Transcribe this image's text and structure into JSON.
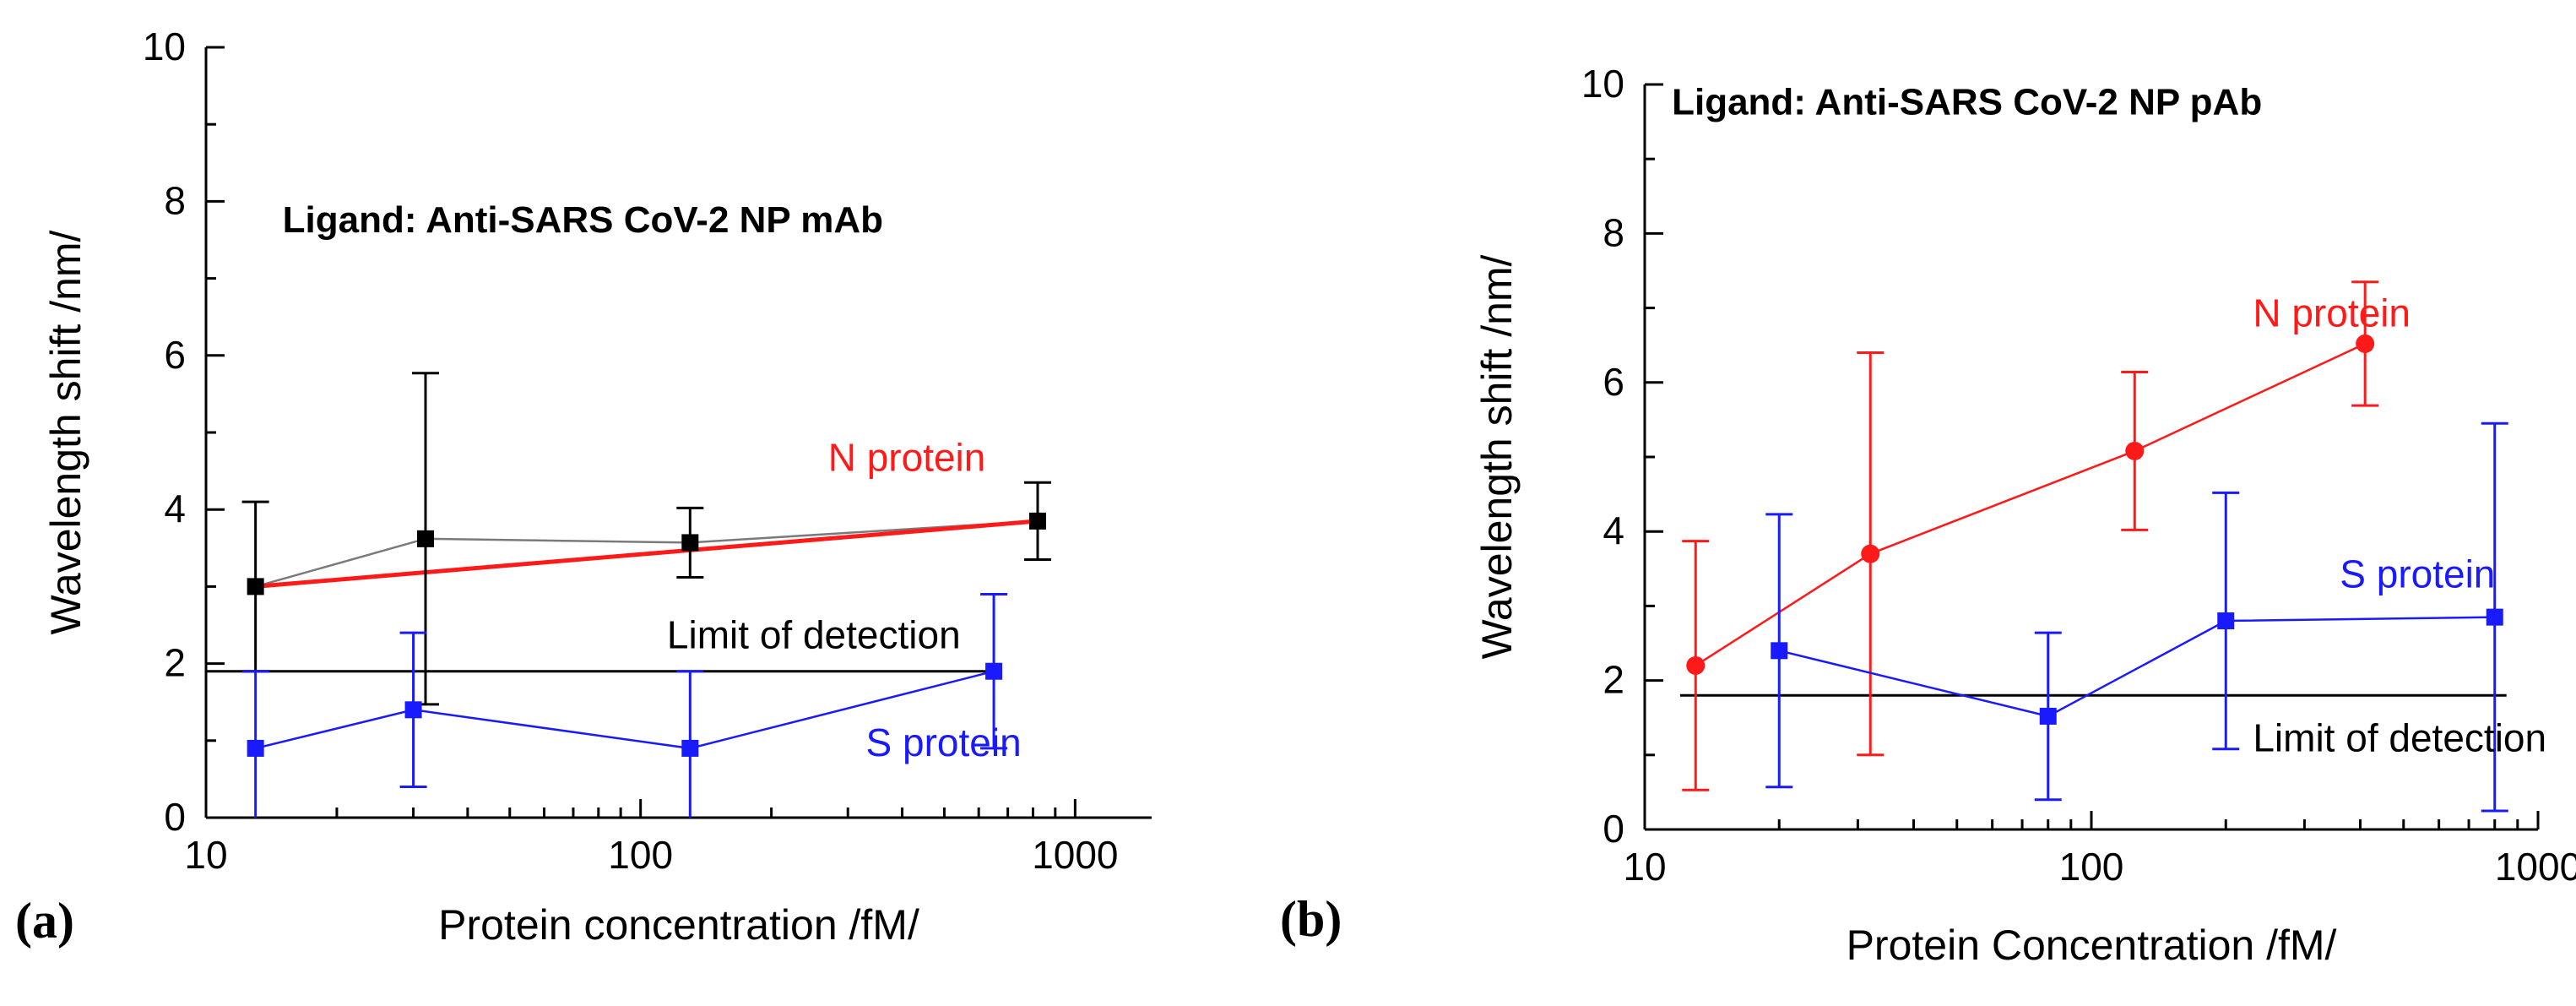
{
  "colors": {
    "n_protein": "#ff1a1a",
    "s_protein": "#1a1aff",
    "black": "#000000",
    "gray_line": "#7a7a7a"
  },
  "chart_data": [
    {
      "panel_label": "(a)",
      "type": "line",
      "xscale": "log",
      "xlim": [
        10,
        1500
      ],
      "ylim": [
        0,
        10
      ],
      "xlabel": "Protein concentration /fM/",
      "ylabel": "Wavelength shift  /nm/",
      "xticks": [
        10,
        100,
        1000
      ],
      "xtick_labels": [
        "10",
        "100",
        "1000"
      ],
      "yticks": [
        0,
        2,
        4,
        6,
        8,
        10
      ],
      "ytick_labels": [
        "0",
        "2",
        "4",
        "6",
        "8",
        "10"
      ],
      "title": "Ligand: Anti-SARS CoV-2 NP mAb",
      "series": [
        {
          "name": "N protein",
          "color": "#000000",
          "line_color": "#7a7a7a",
          "marker": "square",
          "x": [
            13,
            32,
            130,
            820
          ],
          "y": [
            3.0,
            3.62,
            3.57,
            3.85
          ],
          "yerr": [
            1.1,
            2.15,
            0.45,
            0.5
          ],
          "fit": {
            "color": "#ff1a1a",
            "x": [
              13,
              820
            ],
            "y": [
              3.0,
              3.85
            ]
          }
        },
        {
          "name": "S protein",
          "color": "#1a1aff",
          "line_color": "#1a1aff",
          "marker": "square",
          "x": [
            13,
            30,
            130,
            650
          ],
          "y": [
            0.9,
            1.4,
            0.9,
            1.9
          ],
          "yerr": [
            1.0,
            1.0,
            1.0,
            1.0
          ]
        }
      ],
      "lod": {
        "label": "Limit of detection",
        "y": 1.9,
        "x": [
          10,
          650
        ]
      },
      "annotations": [
        {
          "text": "N protein",
          "x": 270,
          "y": 4.5,
          "color": "#ff1a1a"
        },
        {
          "text": "S protein",
          "x": 330,
          "y": 0.8,
          "color": "#1a1aff"
        },
        {
          "text": "Limit of detection",
          "x": 115,
          "y": 2.2,
          "color": "#000000"
        },
        {
          "text": "Ligand: Anti-SARS CoV-2 NP mAb",
          "x": 15,
          "y": 7.6,
          "color": "#000000",
          "bold": true
        }
      ]
    },
    {
      "panel_label": "(b)",
      "type": "line",
      "xscale": "log",
      "xlim": [
        10,
        1000
      ],
      "ylim": [
        0,
        10
      ],
      "xlabel": "Protein Concentration /fM/",
      "ylabel": "Wavelength shift  /nm/",
      "xticks": [
        10,
        100,
        1000
      ],
      "xtick_labels": [
        "10",
        "100",
        "1000"
      ],
      "yticks": [
        0,
        2,
        4,
        6,
        8,
        10
      ],
      "ytick_labels": [
        "0",
        "2",
        "4",
        "6",
        "8",
        "10"
      ],
      "title": "Ligand: Anti-SARS CoV-2 NP pAb",
      "series": [
        {
          "name": "N protein",
          "color": "#ff1a1a",
          "line_color": "#ff1a1a",
          "marker": "circle",
          "x": [
            13,
            32,
            125,
            410
          ],
          "y": [
            2.2,
            3.7,
            5.08,
            6.52
          ],
          "yerr": [
            1.67,
            2.7,
            1.06,
            0.83
          ]
        },
        {
          "name": "S protein",
          "color": "#1a1aff",
          "line_color": "#1a1aff",
          "marker": "square",
          "x": [
            20,
            80,
            200,
            800
          ],
          "y": [
            2.4,
            1.52,
            2.8,
            2.85
          ],
          "yerr": [
            1.83,
            1.12,
            1.72,
            2.6
          ]
        }
      ],
      "lod": {
        "label": "Limit of detection",
        "y": 1.8,
        "x": [
          12,
          850
        ]
      },
      "annotations": [
        {
          "text": "N protein",
          "x": 230,
          "y": 6.75,
          "color": "#ff1a1a"
        },
        {
          "text": "S protein",
          "x": 360,
          "y": 3.25,
          "color": "#1a1aff"
        },
        {
          "text": "Limit of detection",
          "x": 230,
          "y": 1.05,
          "color": "#000000"
        },
        {
          "text": "Ligand: Anti-SARS CoV-2 NP pAb",
          "x": 11.5,
          "y": 9.6,
          "color": "#000000",
          "bold": true
        }
      ]
    }
  ]
}
